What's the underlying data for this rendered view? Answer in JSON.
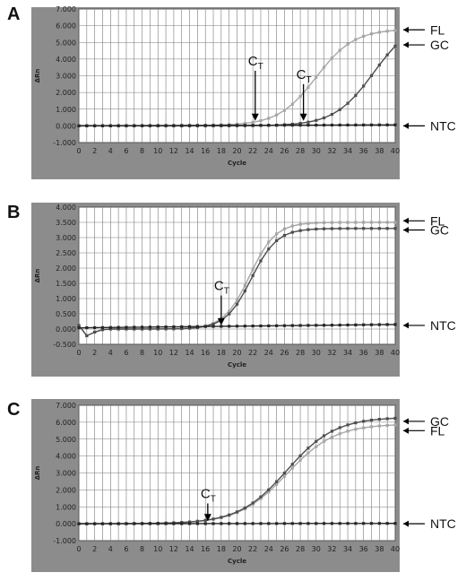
{
  "colors": {
    "panel_bg": "#8c8c8c",
    "plot_bg": "#ffffff",
    "grid": "#7a7a7a",
    "FL": "#a6a6a6",
    "GC": "#4d4d4d",
    "NTC": "#262626",
    "arrow": "#000000"
  },
  "chart_data": [
    {
      "type": "line",
      "panel_label": "A",
      "xlabel": "Cycle",
      "ylabel": "ΔRn",
      "xlim": [
        0,
        40
      ],
      "ylim": [
        -1.0,
        7.0
      ],
      "xticks": [
        0,
        2,
        4,
        6,
        8,
        10,
        12,
        14,
        16,
        18,
        20,
        22,
        24,
        26,
        28,
        30,
        32,
        34,
        36,
        38,
        40
      ],
      "yticks": [
        {
          "v": -1.0,
          "label": "-1.000"
        },
        {
          "v": 0.0,
          "label": "0.000"
        },
        {
          "v": 1.0,
          "label": "1.000"
        },
        {
          "v": 2.0,
          "label": "2.000"
        },
        {
          "v": 3.0,
          "label": "3.000"
        },
        {
          "v": 4.0,
          "label": "4.000"
        },
        {
          "v": 5.0,
          "label": "5.000"
        },
        {
          "v": 6.0,
          "label": "6.000"
        },
        {
          "v": 7.0,
          "label": "7.000"
        }
      ],
      "grid": true,
      "series": [
        {
          "name": "FL",
          "kind": "sigmoid",
          "base": 0.02,
          "plateau": 5.8,
          "midpoint": 30,
          "slope": 0.42,
          "dip": 0
        },
        {
          "name": "GC",
          "kind": "sigmoid",
          "base": 0.0,
          "plateau": 6.4,
          "midpoint": 37.3,
          "slope": 0.4,
          "dip": 0
        },
        {
          "name": "NTC",
          "kind": "flat",
          "level": 0.0,
          "end": 0.06
        }
      ],
      "annotations": [
        {
          "label": "C",
          "sub": "T",
          "x": 22.3,
          "y": 0.3,
          "top": 3.3
        },
        {
          "label": "C",
          "sub": "T",
          "x": 28.4,
          "y": 0.3,
          "top": 2.5
        }
      ],
      "side_labels": [
        {
          "text": "FL",
          "y": 5.75
        },
        {
          "text": "GC",
          "y": 4.85
        },
        {
          "text": "NTC",
          "y": 0.0
        }
      ]
    },
    {
      "type": "line",
      "panel_label": "B",
      "xlabel": "Cycle",
      "ylabel": "ΔRn",
      "xlim": [
        0,
        40
      ],
      "ylim": [
        -0.5,
        4.0
      ],
      "xticks": [
        0,
        2,
        4,
        6,
        8,
        10,
        12,
        14,
        16,
        18,
        20,
        22,
        24,
        26,
        28,
        30,
        32,
        34,
        36,
        38,
        40
      ],
      "yticks": [
        {
          "v": -0.5,
          "label": "-0.500"
        },
        {
          "v": 0.0,
          "label": "0.000"
        },
        {
          "v": 0.5,
          "label": "0.500"
        },
        {
          "v": 1.0,
          "label": "1.000"
        },
        {
          "v": 1.5,
          "label": "1.500"
        },
        {
          "v": 2.0,
          "label": "2.000"
        },
        {
          "v": 2.5,
          "label": "2.500"
        },
        {
          "v": 3.0,
          "label": "3.000"
        },
        {
          "v": 3.5,
          "label": "3.500"
        },
        {
          "v": 4.0,
          "label": "4.000"
        }
      ],
      "grid": true,
      "series": [
        {
          "name": "FL",
          "kind": "sigmoid",
          "base": 0.0,
          "plateau": 3.5,
          "midpoint": 21.6,
          "slope": 0.62,
          "dip": 1
        },
        {
          "name": "GC",
          "kind": "sigmoid",
          "base": 0.0,
          "plateau": 3.3,
          "midpoint": 21.8,
          "slope": 0.62,
          "dip": 1
        },
        {
          "name": "NTC",
          "kind": "flat",
          "level": 0.04,
          "end": 0.15
        }
      ],
      "annotations": [
        {
          "label": "C",
          "sub": "T",
          "x": 18.0,
          "y": 0.12,
          "top": 1.1
        }
      ],
      "side_labels": [
        {
          "text": "FL",
          "y": 3.55
        },
        {
          "text": "GC",
          "y": 3.25
        },
        {
          "text": "NTC",
          "y": 0.12
        }
      ]
    },
    {
      "type": "line",
      "panel_label": "C",
      "xlabel": "Cycle",
      "ylabel": "ΔRn",
      "xlim": [
        0,
        40
      ],
      "ylim": [
        -1.0,
        7.0
      ],
      "xticks": [
        0,
        2,
        4,
        6,
        8,
        10,
        12,
        14,
        16,
        18,
        20,
        22,
        24,
        26,
        28,
        30,
        32,
        34,
        36,
        38,
        40
      ],
      "yticks": [
        {
          "v": -1.0,
          "label": "-1.000"
        },
        {
          "v": 0.0,
          "label": "0.000"
        },
        {
          "v": 1.0,
          "label": "1.000"
        },
        {
          "v": 2.0,
          "label": "2.000"
        },
        {
          "v": 3.0,
          "label": "3.000"
        },
        {
          "v": 4.0,
          "label": "4.000"
        },
        {
          "v": 5.0,
          "label": "5.000"
        },
        {
          "v": 6.0,
          "label": "6.000"
        },
        {
          "v": 7.0,
          "label": "7.000"
        }
      ],
      "grid": true,
      "series": [
        {
          "name": "FL",
          "kind": "sigmoid",
          "base": 0.0,
          "plateau": 5.9,
          "midpoint": 26.3,
          "slope": 0.33,
          "dip": 0
        },
        {
          "name": "GC",
          "kind": "sigmoid",
          "base": 0.0,
          "plateau": 6.3,
          "midpoint": 26.3,
          "slope": 0.33,
          "dip": 0
        },
        {
          "name": "NTC",
          "kind": "flat",
          "level": 0.0,
          "end": 0.02
        }
      ],
      "annotations": [
        {
          "label": "C",
          "sub": "T",
          "x": 16.3,
          "y": 0.15,
          "top": 1.2
        }
      ],
      "side_labels": [
        {
          "text": "GC",
          "y": 6.05
        },
        {
          "text": "FL",
          "y": 5.5
        },
        {
          "text": "NTC",
          "y": 0.0
        }
      ]
    }
  ]
}
